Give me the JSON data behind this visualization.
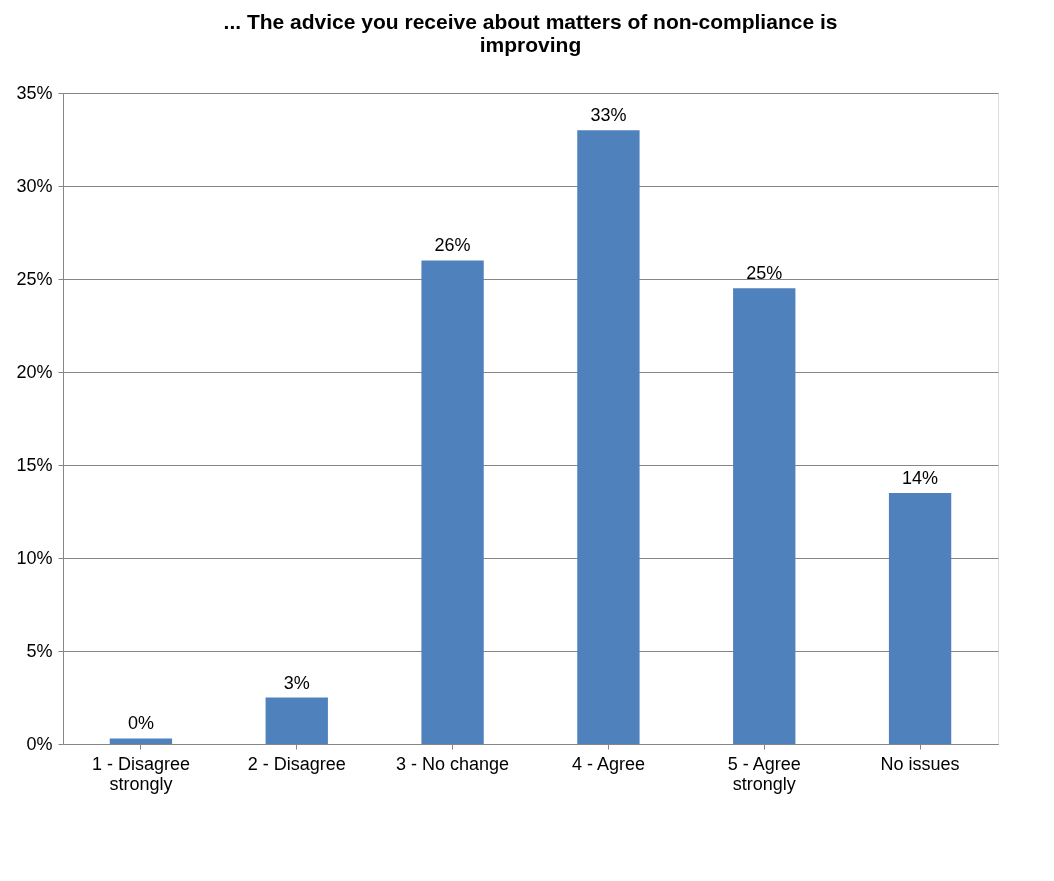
{
  "chart_data": {
    "type": "bar",
    "title": "... The advice you receive about matters of non-compliance is improving",
    "categories": [
      "1 - Disagree strongly",
      "2 - Disagree",
      "3 - No change",
      "4 - Agree",
      "5 - Agree strongly",
      "No issues"
    ],
    "values": [
      0.3,
      2.5,
      26,
      33,
      24.5,
      13.5
    ],
    "value_labels": [
      "0%",
      "3%",
      "26%",
      "33%",
      "25%",
      "14%"
    ],
    "color": "#4f81bd",
    "ylim": [
      0,
      35
    ],
    "yticks": [
      {
        "value": 0,
        "label": "0%"
      },
      {
        "value": 5,
        "label": "5%"
      },
      {
        "value": 10,
        "label": "10%"
      },
      {
        "value": 15,
        "label": "15%"
      },
      {
        "value": 20,
        "label": "20%"
      },
      {
        "value": 25,
        "label": "25%"
      },
      {
        "value": 30,
        "label": "30%"
      },
      {
        "value": 35,
        "label": "35%"
      }
    ],
    "grid": "y"
  }
}
